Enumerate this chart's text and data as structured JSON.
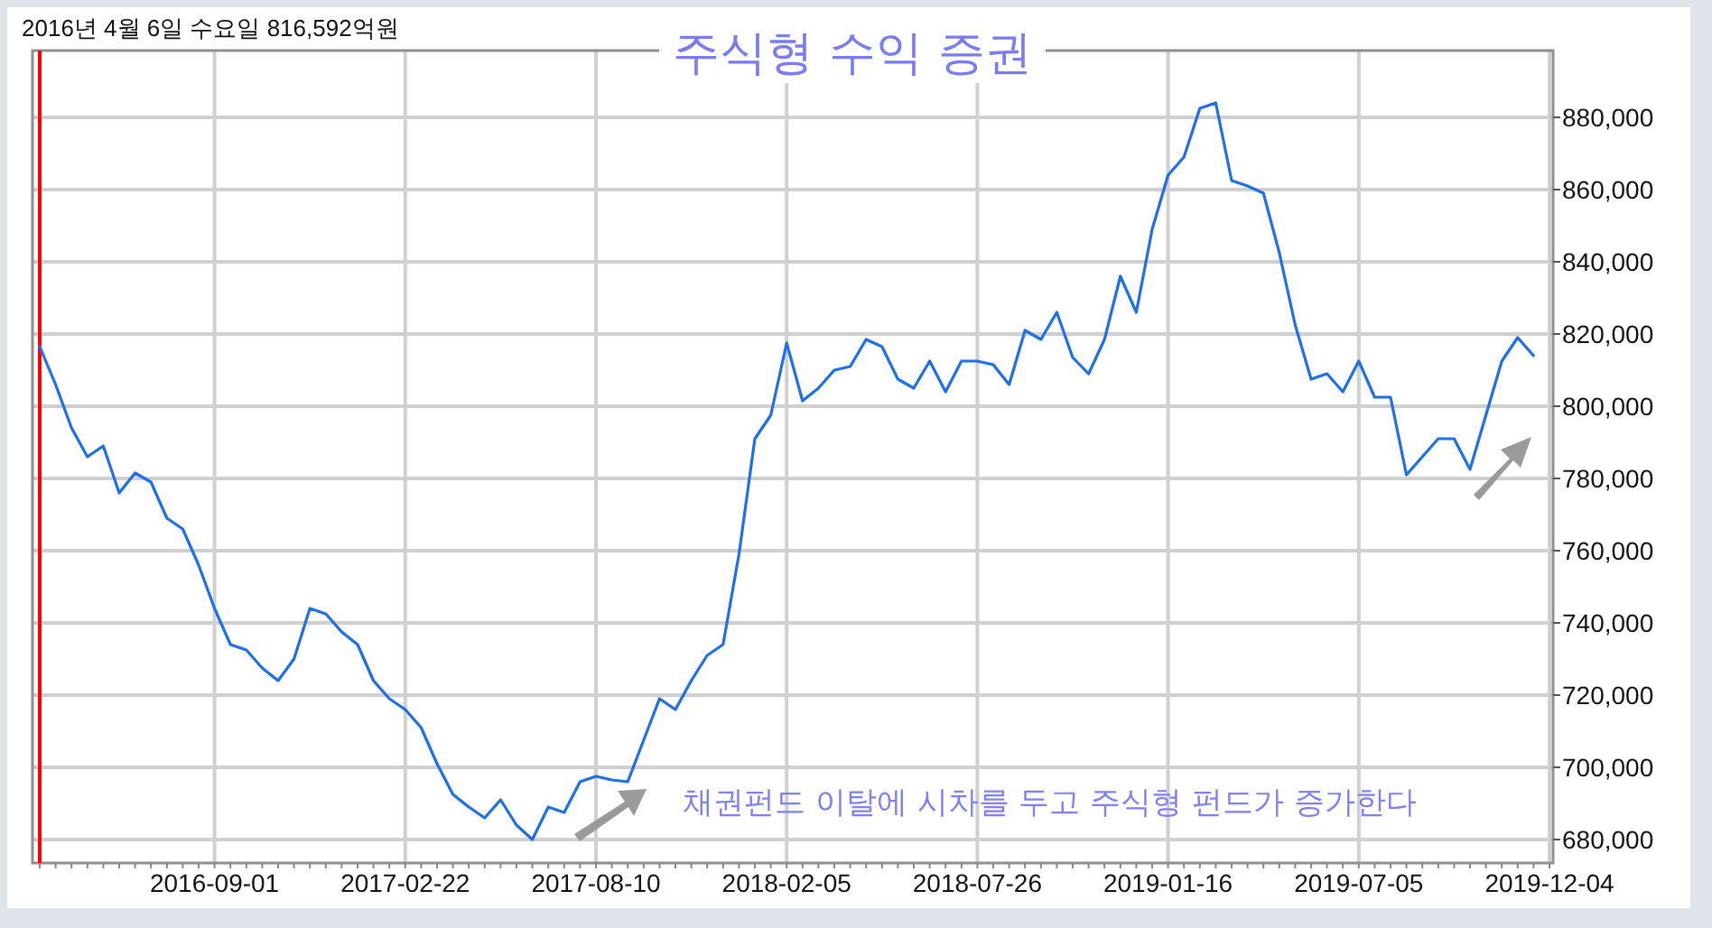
{
  "chart_data": {
    "type": "line",
    "title": "주식형 수익 증권",
    "subtitle": "2016년 4월 6일 수요일   816,592억원",
    "categories": [
      null,
      null,
      null,
      null,
      null,
      null,
      null,
      null,
      null,
      null,
      null,
      "2016-09-01",
      null,
      null,
      null,
      null,
      null,
      null,
      null,
      null,
      null,
      null,
      null,
      "2017-02-22",
      null,
      null,
      null,
      null,
      null,
      null,
      null,
      null,
      null,
      null,
      null,
      "2017-08-10",
      null,
      null,
      null,
      null,
      null,
      null,
      null,
      null,
      null,
      null,
      null,
      "2018-02-05",
      null,
      null,
      null,
      null,
      null,
      null,
      null,
      null,
      null,
      null,
      null,
      "2018-07-26",
      null,
      null,
      null,
      null,
      null,
      null,
      null,
      null,
      null,
      null,
      null,
      "2019-01-16",
      null,
      null,
      null,
      null,
      null,
      null,
      null,
      null,
      null,
      null,
      null,
      "2019-07-05",
      null,
      null,
      null,
      null,
      null,
      null,
      null,
      null,
      null,
      null,
      null,
      "2019-12-04"
    ],
    "series": [
      {
        "color": "#1f6fe8",
        "values": [
          816500,
          806000,
          794000,
          786000,
          789000,
          776000,
          781500,
          779000,
          769000,
          766000,
          756000,
          744000,
          734000,
          732500,
          727500,
          724000,
          730000,
          744000,
          742500,
          737500,
          734000,
          724000,
          719000,
          716000,
          711000,
          701000,
          692500,
          689000,
          686000,
          691000,
          684000,
          680000,
          689000,
          687500,
          696000,
          697500,
          696500,
          696000,
          707500,
          719000,
          716000,
          724000,
          731000,
          734000,
          759000,
          791000,
          797500,
          817500,
          801500,
          805000,
          810000,
          811000,
          818500,
          816500,
          807500,
          805000,
          812500,
          804000,
          812500,
          812500,
          811500,
          806000,
          821000,
          818500,
          826000,
          813500,
          809000,
          818500,
          836000,
          826000,
          849000,
          864000,
          869000,
          882500,
          884000,
          862500,
          861000,
          859000,
          842500,
          822500,
          807500,
          809000,
          804000,
          812500,
          802500,
          802500,
          781000,
          786000,
          791000,
          791000,
          782500,
          797500,
          812500,
          819000,
          814000,
          null
        ]
      }
    ],
    "ylim": [
      673500,
      898500
    ],
    "yticks": [
      {
        "value": 680000,
        "label": "680,000"
      },
      {
        "value": 700000,
        "label": "700,000"
      },
      {
        "value": 720000,
        "label": "720,000"
      },
      {
        "value": 740000,
        "label": "740,000"
      },
      {
        "value": 760000,
        "label": "760,000"
      },
      {
        "value": 780000,
        "label": "780,000"
      },
      {
        "value": 800000,
        "label": "800,000"
      },
      {
        "value": 820000,
        "label": "820,000"
      },
      {
        "value": 840000,
        "label": "840,000"
      },
      {
        "value": 860000,
        "label": "860,000"
      },
      {
        "value": 880000,
        "label": "880,000"
      }
    ],
    "grid": true,
    "marker": "none",
    "line_style": "solid",
    "annotations": [
      "채권펀드 이탈에 시차를 두고 주식형 펀드가 증가한다"
    ]
  }
}
